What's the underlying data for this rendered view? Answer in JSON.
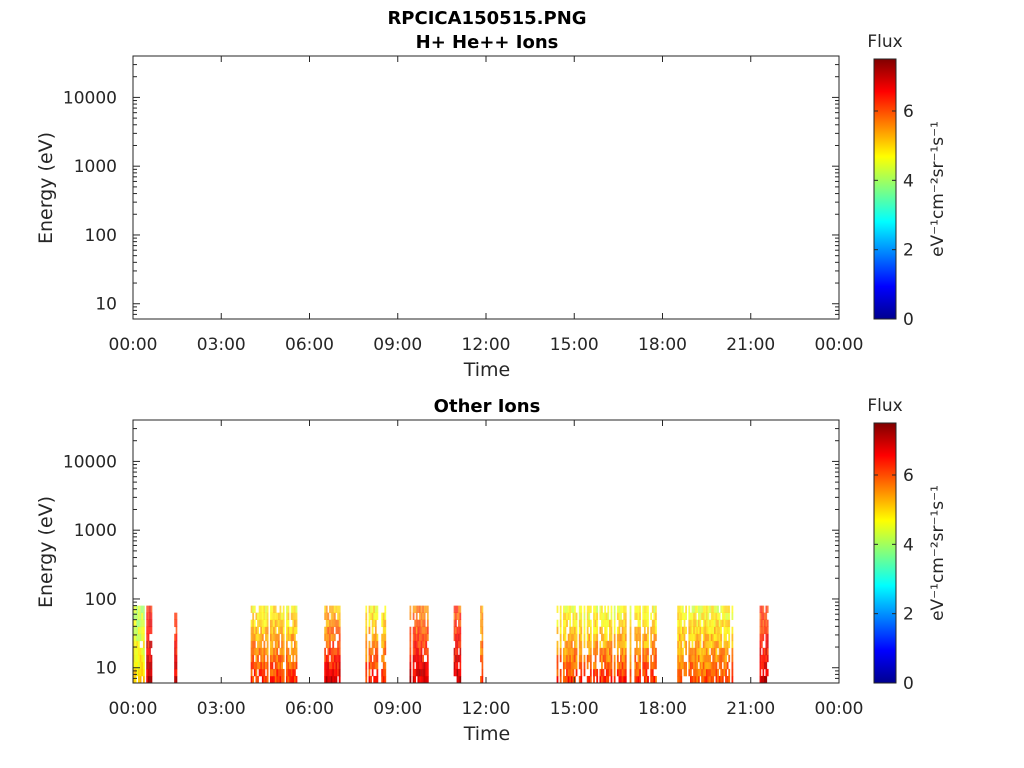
{
  "figure": {
    "title": "RPCICA150515.PNG"
  },
  "chart_data": [
    {
      "type": "heatmap",
      "title": "H+ He++ Ions",
      "xlabel": "Time",
      "ylabel": "Energy (eV)",
      "x_ticks": [
        "00:00",
        "03:00",
        "06:00",
        "09:00",
        "12:00",
        "15:00",
        "18:00",
        "21:00",
        "00:00"
      ],
      "x_range_hours": [
        0,
        24
      ],
      "y_scale": "log",
      "y_ticks": [
        "10",
        "100",
        "1000",
        "10000"
      ],
      "y_range": [
        6,
        40000
      ],
      "colorbar": {
        "title": "Flux",
        "units": "eV⁻¹cm⁻²sr⁻¹s⁻¹",
        "range": [
          0,
          7.5
        ],
        "ticks": [
          "0",
          "2",
          "4",
          "6"
        ],
        "colormap": "jet"
      },
      "intervals": []
    },
    {
      "type": "heatmap",
      "title": "Other Ions",
      "xlabel": "Time",
      "ylabel": "Energy (eV)",
      "x_ticks": [
        "00:00",
        "03:00",
        "06:00",
        "09:00",
        "12:00",
        "15:00",
        "18:00",
        "21:00",
        "00:00"
      ],
      "x_range_hours": [
        0,
        24
      ],
      "y_scale": "log",
      "y_ticks": [
        "10",
        "100",
        "1000",
        "10000"
      ],
      "y_range": [
        6,
        40000
      ],
      "colorbar": {
        "title": "Flux",
        "units": "eV⁻¹cm⁻²sr⁻¹s⁻¹",
        "range": [
          0,
          7.5
        ],
        "ticks": [
          "0",
          "2",
          "4",
          "6"
        ],
        "colormap": "jet"
      },
      "energy_extent_eV": [
        6,
        80
      ],
      "intervals": [
        {
          "start": 0.0,
          "end": 0.45,
          "flux_low": 4.2,
          "flux_high": 5.0
        },
        {
          "start": 0.45,
          "end": 0.65,
          "flux_low": 6.4,
          "flux_high": 7.0
        },
        {
          "start": 1.35,
          "end": 1.5,
          "flux_low": 6.2,
          "flux_high": 6.8
        },
        {
          "start": 4.0,
          "end": 5.8,
          "flux_low": 4.8,
          "flux_high": 6.2
        },
        {
          "start": 6.5,
          "end": 7.05,
          "flux_low": 5.2,
          "flux_high": 6.8
        },
        {
          "start": 7.9,
          "end": 8.6,
          "flux_low": 4.8,
          "flux_high": 6.3
        },
        {
          "start": 9.4,
          "end": 10.1,
          "flux_low": 5.6,
          "flux_high": 6.9
        },
        {
          "start": 10.9,
          "end": 11.2,
          "flux_low": 6.0,
          "flux_high": 7.0
        },
        {
          "start": 11.8,
          "end": 11.9,
          "flux_low": 5.5,
          "flux_high": 6.0
        },
        {
          "start": 14.4,
          "end": 17.8,
          "flux_low": 4.6,
          "flux_high": 6.2
        },
        {
          "start": 18.5,
          "end": 20.4,
          "flux_low": 4.6,
          "flux_high": 6.0
        },
        {
          "start": 21.3,
          "end": 21.6,
          "flux_low": 6.0,
          "flux_high": 6.9
        }
      ]
    }
  ]
}
